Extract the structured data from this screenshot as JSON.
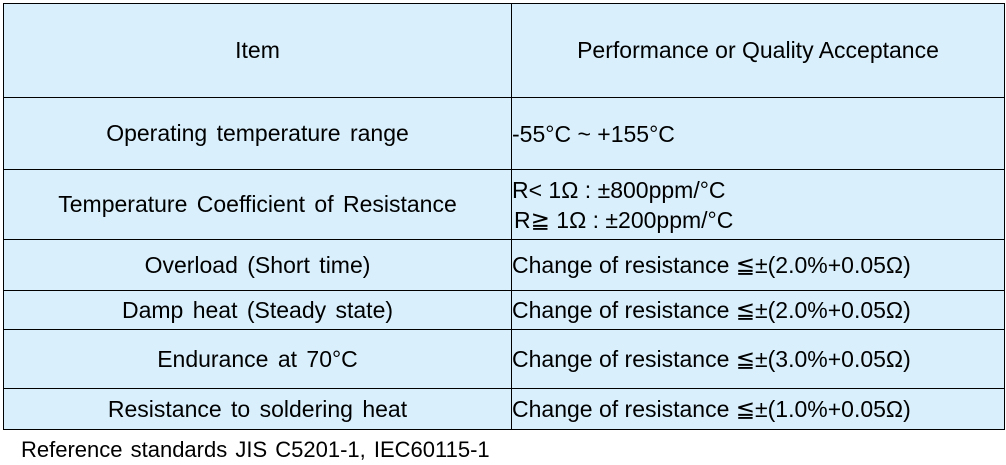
{
  "table": {
    "headers": [
      "Item",
      "Performance or Quality Acceptance"
    ],
    "rows": [
      {
        "item": "Operating temperature range",
        "performance": [
          "-55°C ~ +155°C"
        ]
      },
      {
        "item": "Temperature Coefficient of Resistance",
        "performance": [
          "R< 1Ω  : ±800ppm/°C",
          "R≧ 1Ω  : ±200ppm/°C"
        ]
      },
      {
        "item": "Overload (Short time)",
        "performance": [
          "Change of resistance ≦±(2.0%+0.05Ω)"
        ]
      },
      {
        "item": "Damp heat (Steady state)",
        "performance": [
          "Change of resistance ≦±(2.0%+0.05Ω)"
        ]
      },
      {
        "item": "Endurance at 70°C",
        "performance": [
          "Change of resistance ≦±(3.0%+0.05Ω)"
        ]
      },
      {
        "item": "Resistance to soldering heat",
        "performance": [
          "Change of resistance ≦±(1.0%+0.05Ω)"
        ]
      }
    ],
    "header_bg": "#d9f0fc",
    "border_color": "#000000"
  },
  "footer": {
    "text": "Reference standards JIS C5201-1, IEC60115-1"
  }
}
